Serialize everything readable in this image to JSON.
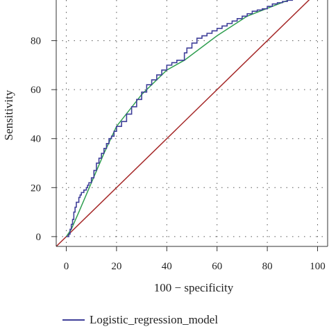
{
  "chart_data": {
    "type": "line",
    "xlabel": "100 − specificity",
    "ylabel": "Sensitivity",
    "xlim": [
      -4,
      104
    ],
    "ylim": [
      -4,
      100
    ],
    "x_ticks": [
      0,
      20,
      40,
      60,
      80,
      100
    ],
    "y_ticks": [
      0,
      20,
      40,
      60,
      80
    ],
    "grid": true,
    "legend_position": "bottom",
    "legend": [
      {
        "label": "Logistic_regression_model",
        "color": "#3f3f99"
      }
    ],
    "series": [
      {
        "name": "Logistic_regression_model",
        "color": "#3f3f99",
        "style": "step",
        "x": [
          0,
          1,
          1.5,
          2,
          2.5,
          3,
          3.5,
          4,
          5,
          5.5,
          6,
          7,
          8,
          8.5,
          9,
          10,
          11,
          12,
          13,
          14,
          15,
          16,
          17,
          18,
          19,
          20,
          22,
          24,
          26,
          28,
          30,
          32,
          34,
          36,
          38,
          40,
          42,
          44,
          46,
          47,
          48,
          50,
          52,
          54,
          56,
          58,
          60,
          62,
          64,
          66,
          68,
          70,
          72,
          74,
          76,
          78,
          80,
          82,
          84,
          86,
          88,
          90,
          92
        ],
        "y": [
          0,
          1,
          3,
          5,
          7,
          10,
          12,
          14,
          16,
          17,
          18,
          19,
          20,
          21,
          22,
          24,
          27,
          30,
          32,
          34,
          36,
          38,
          40,
          41,
          43,
          45,
          47,
          50,
          53,
          56,
          59,
          62,
          64,
          66,
          68,
          70,
          71,
          72,
          72,
          75,
          77,
          79,
          81,
          82,
          83,
          84,
          85,
          86,
          87,
          88,
          89,
          90,
          91,
          92,
          92.5,
          93,
          94,
          95,
          95.5,
          96,
          96.5,
          97,
          98
        ]
      },
      {
        "name": "",
        "color": "#2e9e4f",
        "style": "line",
        "x": [
          0,
          2,
          5,
          10,
          15,
          20,
          30,
          40,
          47,
          60,
          72,
          82,
          92
        ],
        "y": [
          0,
          3,
          10,
          22,
          34,
          45,
          58,
          68,
          72,
          82,
          90,
          94,
          98
        ]
      },
      {
        "name": "",
        "color": "#a52828",
        "style": "line",
        "x": [
          -4,
          104
        ],
        "y": [
          -4,
          104
        ]
      }
    ]
  }
}
